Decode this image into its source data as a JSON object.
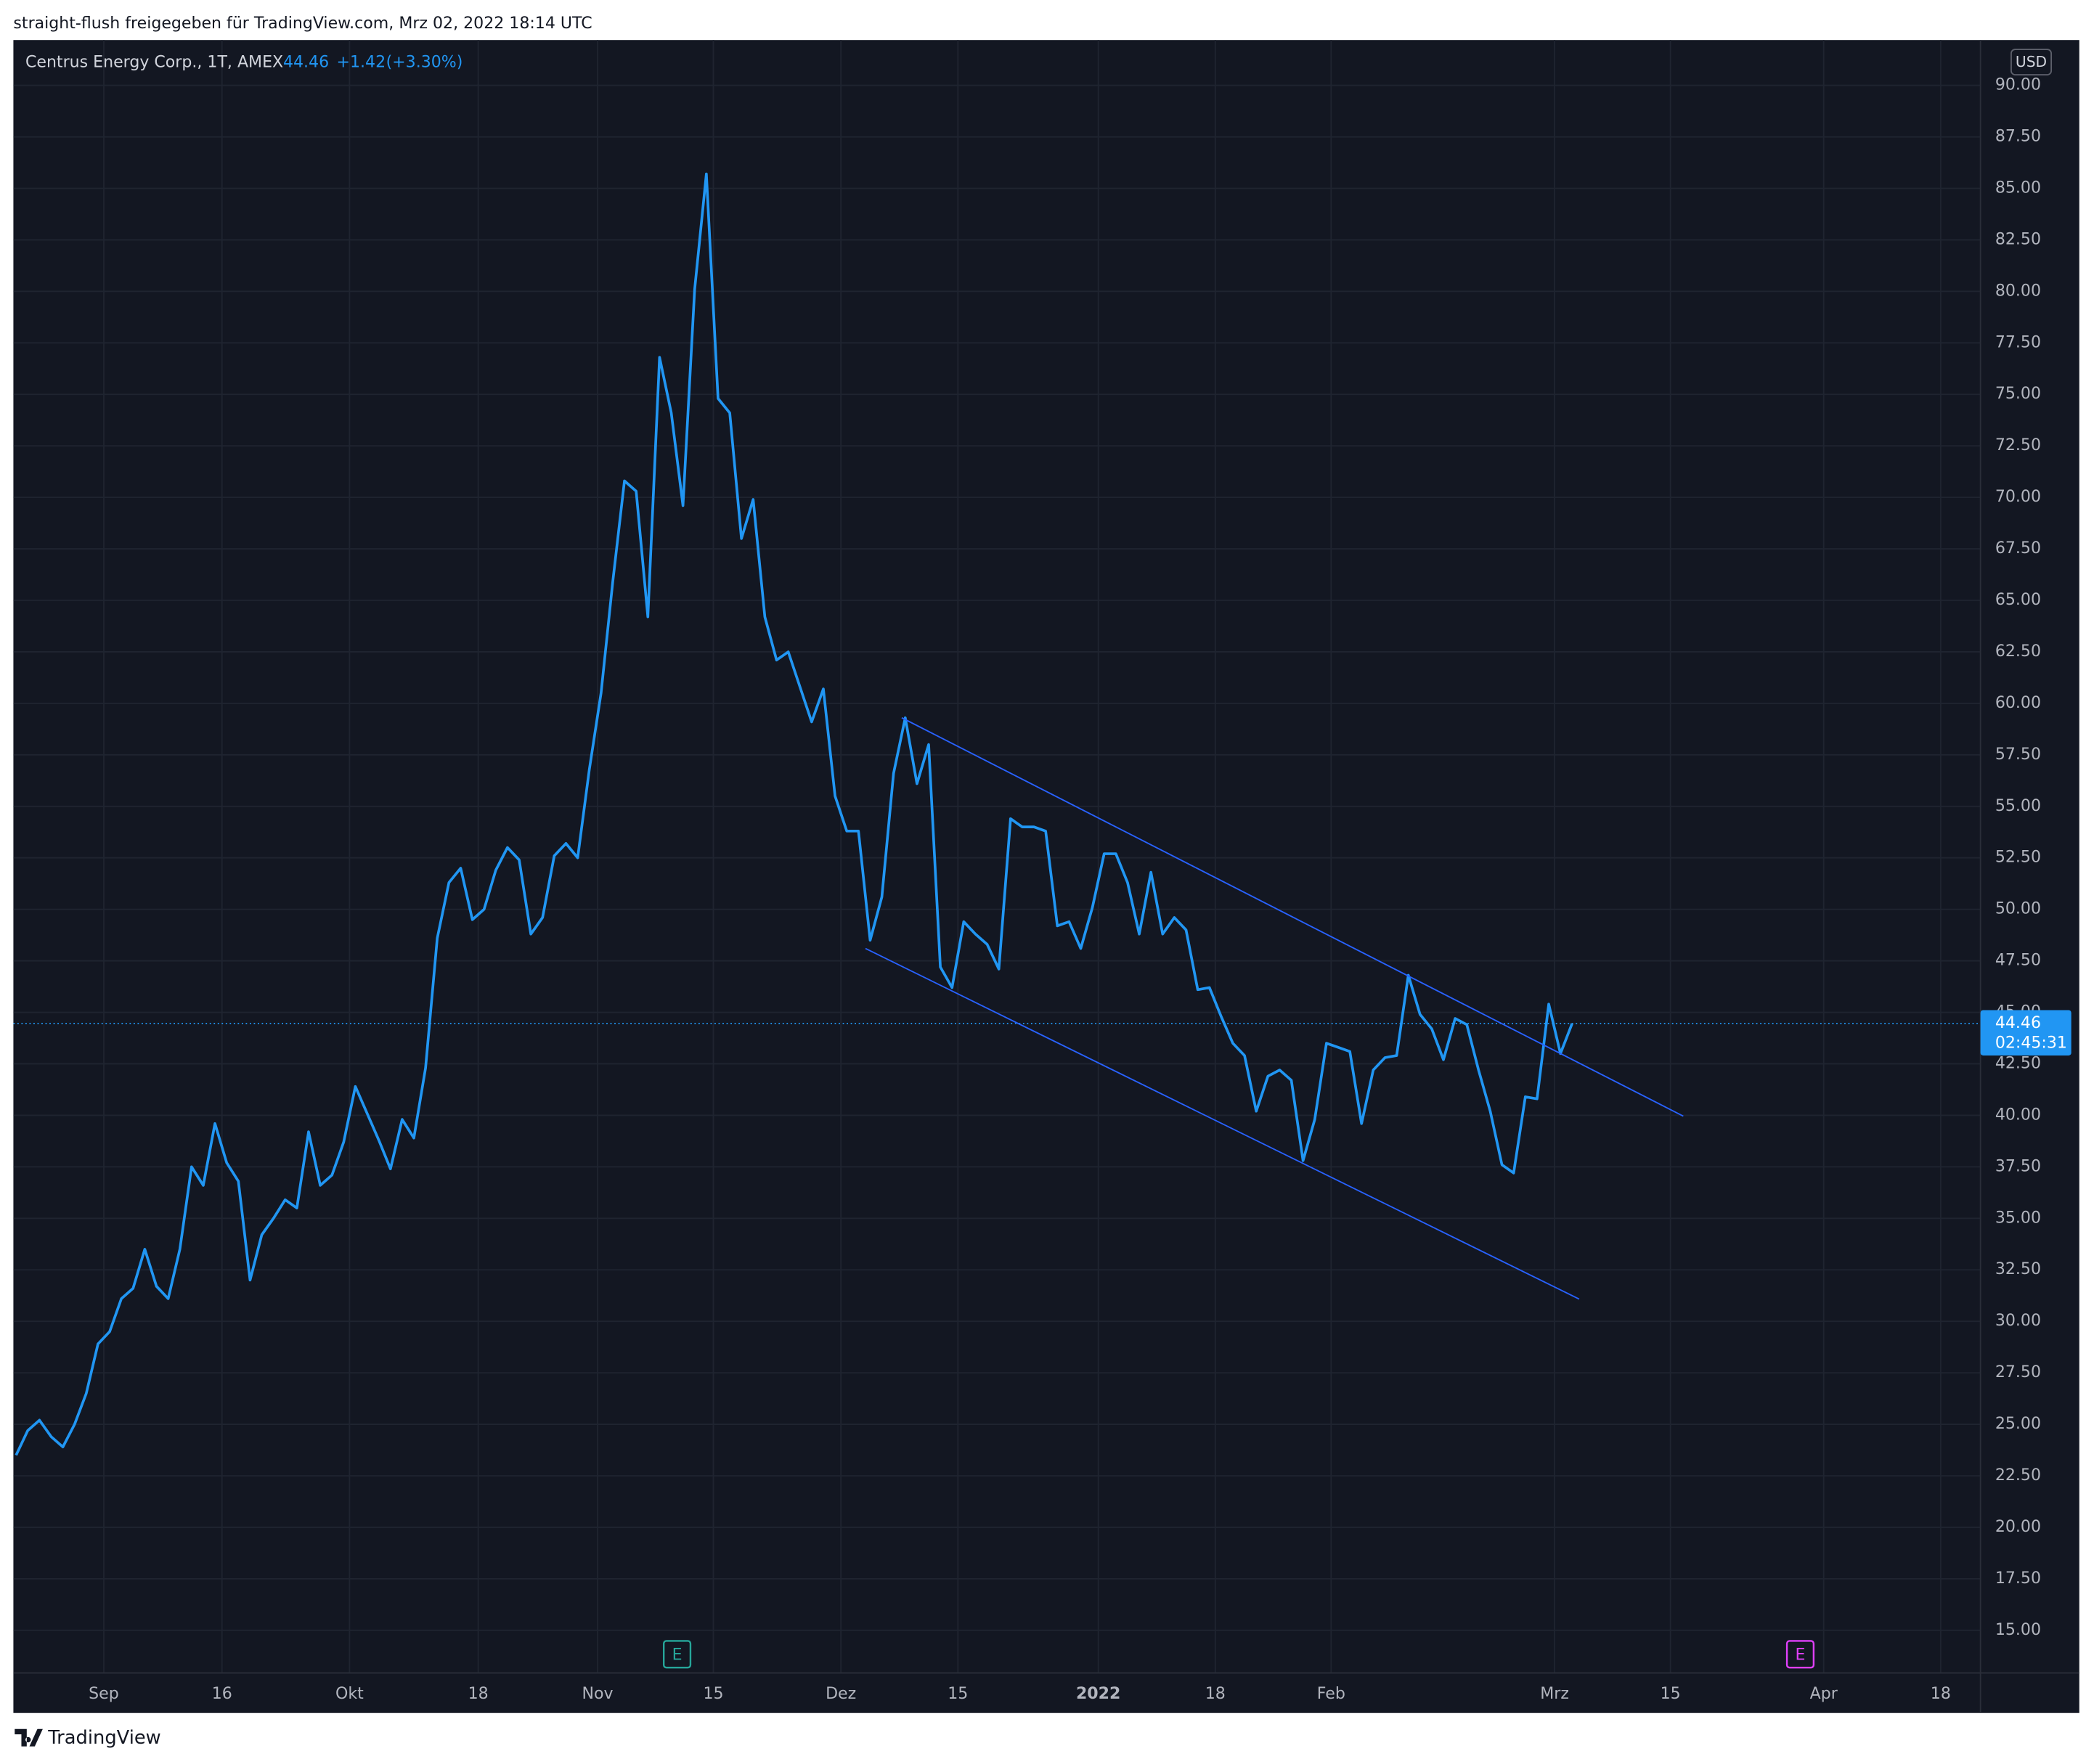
{
  "header": {
    "share_text": "straight-flush freigegeben für TradingView.com, Mrz 02, 2022 18:14 UTC"
  },
  "footer": {
    "brand": "TradingView"
  },
  "chart_data": {
    "type": "line",
    "symbol": "Centrus Energy Corp., 1T, AMEX",
    "quote": {
      "last": 44.46,
      "change": "+1.42",
      "change_pct": "(+3.30%)"
    },
    "currency": "USD",
    "grid": true,
    "x": [
      0,
      1,
      2,
      3,
      4,
      5,
      6,
      7,
      8,
      9,
      10,
      11,
      12,
      13,
      14,
      15,
      16,
      17,
      18,
      19,
      20,
      21,
      22,
      23,
      24,
      25,
      26,
      27,
      28,
      29,
      30,
      31,
      32,
      33,
      34,
      35,
      36,
      37,
      38,
      39,
      40,
      41,
      42,
      43,
      44,
      45,
      46,
      47,
      48,
      49,
      50,
      51,
      52,
      53,
      54,
      55,
      56,
      57,
      58,
      59,
      60,
      61,
      62,
      63,
      64,
      65,
      66,
      67,
      68,
      69,
      70,
      71,
      72,
      73,
      74,
      75,
      76,
      77,
      78,
      79,
      80,
      81,
      82,
      83,
      84,
      85,
      86,
      87,
      88,
      89,
      90,
      91,
      92,
      93,
      94,
      95,
      96,
      97,
      98,
      99,
      100,
      101,
      102,
      103,
      104,
      105,
      106,
      107,
      108,
      109,
      110,
      111,
      112,
      113,
      114,
      115,
      116,
      117,
      118,
      119,
      120,
      121,
      122,
      123,
      124,
      125,
      126,
      127,
      128,
      129,
      130,
      131,
      132,
      133
    ],
    "series": [
      {
        "color": "#2196f3",
        "values": [
          23.5,
          24.7,
          25.2,
          24.4,
          23.9,
          25.0,
          26.5,
          28.9,
          29.5,
          31.1,
          31.6,
          33.5,
          31.7,
          31.1,
          33.5,
          37.5,
          36.6,
          39.6,
          37.7,
          36.8,
          32.0,
          34.2,
          35.0,
          35.9,
          35.5,
          39.2,
          36.6,
          37.1,
          38.7,
          41.4,
          40.1,
          38.8,
          37.4,
          39.8,
          38.9,
          42.3,
          48.6,
          51.3,
          52.0,
          49.5,
          50.0,
          51.9,
          53.0,
          52.4,
          48.8,
          49.6,
          52.6,
          53.2,
          52.5,
          56.8,
          60.5,
          65.9,
          70.8,
          70.3,
          64.2,
          76.8,
          74.1,
          69.6,
          80.1,
          85.7,
          74.8,
          74.1,
          68.0,
          69.9,
          64.2,
          62.1,
          62.5,
          60.8,
          59.1,
          60.7,
          55.5,
          53.8,
          53.8,
          48.5,
          50.6,
          56.6,
          59.3,
          56.1,
          58.0,
          47.2,
          46.2,
          49.4,
          48.8,
          48.3,
          47.1,
          54.4,
          54.0,
          54.0,
          53.8,
          49.2,
          49.4,
          48.1,
          50.1,
          52.7,
          52.7,
          51.3,
          48.8,
          51.8,
          48.8,
          49.6,
          49.0,
          46.1,
          46.2,
          44.8,
          43.5,
          42.9,
          40.2,
          41.9,
          42.2,
          41.7,
          37.8,
          39.8,
          43.5,
          43.3,
          43.1,
          39.6,
          42.2,
          42.8,
          42.9,
          46.8,
          44.9,
          44.2,
          42.7,
          44.7,
          44.4,
          42.2,
          40.2,
          37.6,
          37.2,
          40.9,
          40.8,
          45.4,
          43.0,
          44.46
        ]
      }
    ],
    "trend_lines": [
      {
        "color": "#2962ff",
        "x": [
          75.7,
          142.5
        ],
        "y": [
          59.3,
          39.96
        ]
      },
      {
        "color": "#2962ff",
        "x": [
          72.6,
          133.6
        ],
        "y": [
          48.1,
          31.08
        ]
      }
    ],
    "last_price": {
      "value": 44.46,
      "countdown": "02:45:31"
    },
    "earnings_markers": [
      {
        "x": 56.5,
        "label": "E",
        "color": "#26a69a"
      },
      {
        "x": 152.5,
        "label": "E",
        "color": "#e040fb"
      }
    ],
    "xlim": [
      -0.23,
      167.9
    ],
    "xticks": [
      {
        "value": 7.5,
        "label": "Sep"
      },
      {
        "value": 17.6,
        "label": "16"
      },
      {
        "value": 28.5,
        "label": "Okt"
      },
      {
        "value": 39.5,
        "label": "18"
      },
      {
        "value": 49.7,
        "label": "Nov"
      },
      {
        "value": 59.6,
        "label": "15"
      },
      {
        "value": 70.5,
        "label": "Dez"
      },
      {
        "value": 80.5,
        "label": "15"
      },
      {
        "value": 92.5,
        "label": "2022"
      },
      {
        "value": 102.5,
        "label": "18"
      },
      {
        "value": 112.4,
        "label": "Feb"
      },
      {
        "value": 131.5,
        "label": "Mrz"
      },
      {
        "value": 141.4,
        "label": "15"
      },
      {
        "value": 154.5,
        "label": "Apr"
      },
      {
        "value": 164.5,
        "label": "18"
      }
    ],
    "ylim": [
      12.93,
      92.2
    ],
    "yticks": [
      {
        "value": 15,
        "label": "15.00"
      },
      {
        "value": 17.5,
        "label": "17.50"
      },
      {
        "value": 20,
        "label": "20.00"
      },
      {
        "value": 22.5,
        "label": "22.50"
      },
      {
        "value": 25,
        "label": "25.00"
      },
      {
        "value": 27.5,
        "label": "27.50"
      },
      {
        "value": 30,
        "label": "30.00"
      },
      {
        "value": 32.5,
        "label": "32.50"
      },
      {
        "value": 35,
        "label": "35.00"
      },
      {
        "value": 37.5,
        "label": "37.50"
      },
      {
        "value": 40,
        "label": "40.00"
      },
      {
        "value": 42.5,
        "label": "42.50"
      },
      {
        "value": 45,
        "label": "45.00"
      },
      {
        "value": 47.5,
        "label": "47.50"
      },
      {
        "value": 50,
        "label": "50.00"
      },
      {
        "value": 52.5,
        "label": "52.50"
      },
      {
        "value": 55,
        "label": "55.00"
      },
      {
        "value": 57.5,
        "label": "57.50"
      },
      {
        "value": 60,
        "label": "60.00"
      },
      {
        "value": 62.5,
        "label": "62.50"
      },
      {
        "value": 65,
        "label": "65.00"
      },
      {
        "value": 67.5,
        "label": "67.50"
      },
      {
        "value": 70,
        "label": "70.00"
      },
      {
        "value": 72.5,
        "label": "72.50"
      },
      {
        "value": 75,
        "label": "75.00"
      },
      {
        "value": 77.5,
        "label": "77.50"
      },
      {
        "value": 80,
        "label": "80.00"
      },
      {
        "value": 82.5,
        "label": "82.50"
      },
      {
        "value": 85,
        "label": "85.00"
      },
      {
        "value": 87.5,
        "label": "87.50"
      },
      {
        "value": 90,
        "label": "90.00"
      }
    ]
  }
}
